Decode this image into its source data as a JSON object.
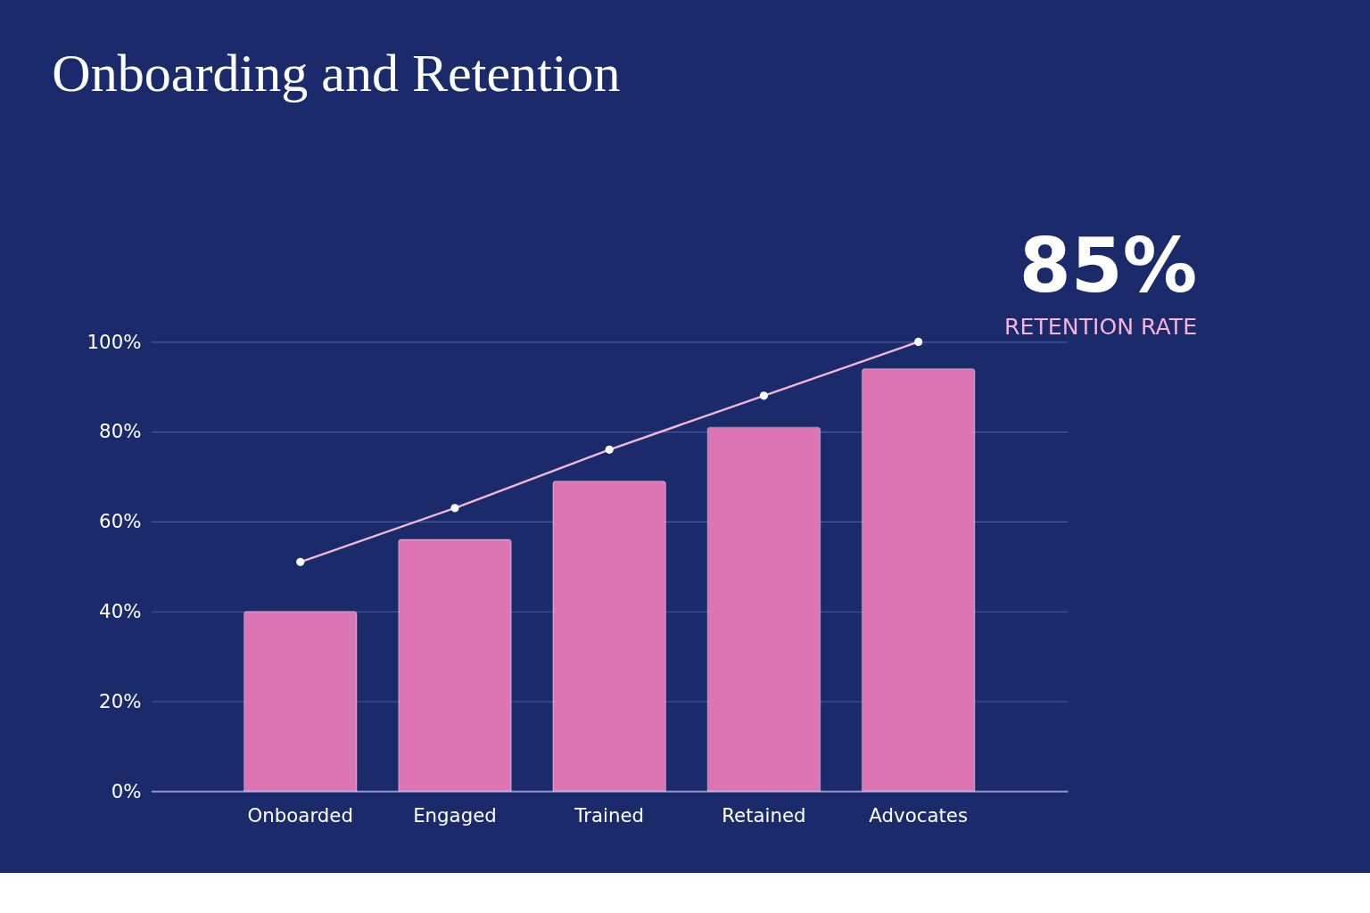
{
  "chart_data": {
    "type": "bar",
    "title": "Onboarding and Retention",
    "categories": [
      "Onboarded",
      "Engaged",
      "Trained",
      "Retained",
      "Advocates"
    ],
    "series": [
      {
        "color": "#e879b8",
        "values": [
          40,
          56,
          69,
          81,
          94
        ]
      },
      {
        "type": "line",
        "color": "#f4b6d6",
        "marker": "circle",
        "values": [
          51,
          63,
          76,
          88,
          100
        ]
      }
    ],
    "ylim": [
      0,
      100
    ],
    "yticks": [
      {
        "value": 0,
        "label": "0%"
      },
      {
        "value": 20,
        "label": "20%"
      },
      {
        "value": 40,
        "label": "40%"
      },
      {
        "value": 60,
        "label": "60%"
      },
      {
        "value": 80,
        "label": "80%"
      },
      {
        "value": 100,
        "label": "100%"
      }
    ],
    "grid": "y",
    "annotations": [
      "85%",
      "RETENTION RATE"
    ]
  }
}
